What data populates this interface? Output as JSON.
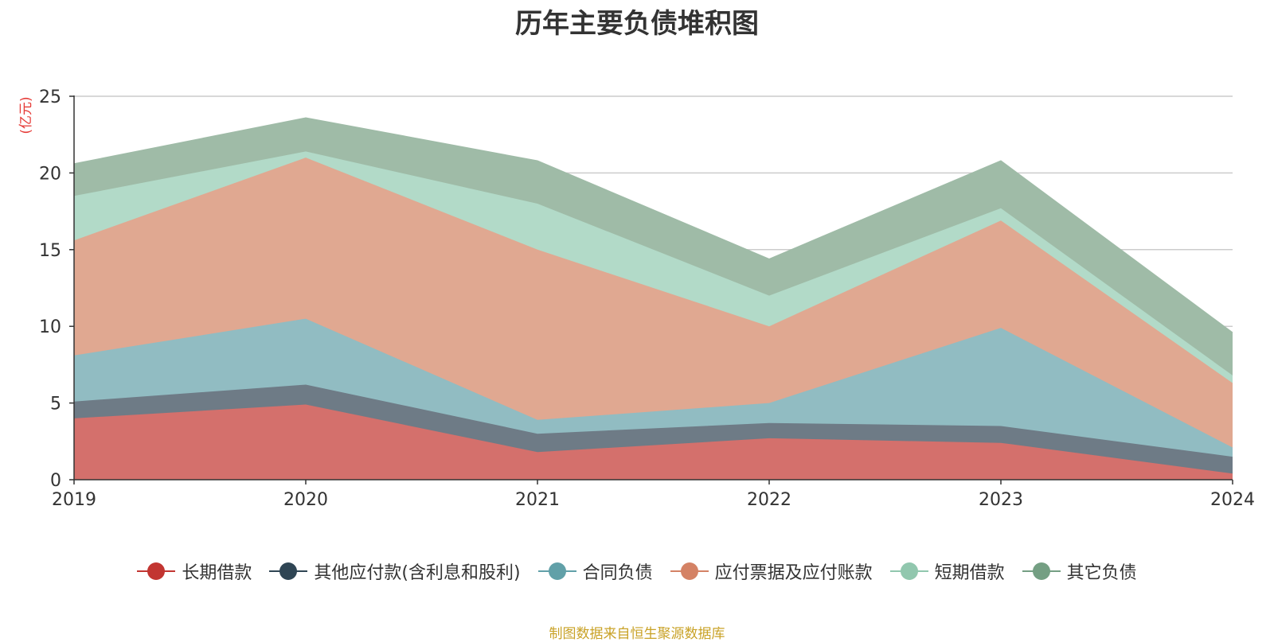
{
  "chart_data": {
    "type": "area",
    "stacked": true,
    "title": "历年主要负债堆积图",
    "ylabel": "(亿元)",
    "xlabel": "",
    "categories": [
      "2019",
      "2020",
      "2021",
      "2022",
      "2023",
      "2024"
    ],
    "ylim": [
      0,
      25
    ],
    "yticks": [
      0,
      5,
      10,
      15,
      20,
      25
    ],
    "grid": true,
    "legend_position": "bottom",
    "series": [
      {
        "name": "长期借款",
        "color": "#c23531",
        "fill": "#d4706c",
        "values": [
          4.0,
          4.9,
          1.8,
          2.7,
          2.4,
          0.4
        ]
      },
      {
        "name": "其他应付款(含利息和股利)",
        "color": "#2f4554",
        "fill": "#6e7b86",
        "values": [
          1.1,
          1.3,
          1.2,
          1.0,
          1.1,
          1.1
        ]
      },
      {
        "name": "合同负债",
        "color": "#61a0a8",
        "fill": "#91bcc2",
        "values": [
          3.0,
          4.3,
          0.9,
          1.3,
          6.4,
          0.6
        ]
      },
      {
        "name": "应付票据及应付账款",
        "color": "#d48265",
        "fill": "#e0a891",
        "values": [
          7.5,
          10.5,
          11.1,
          5.0,
          7.0,
          4.2
        ]
      },
      {
        "name": "短期借款",
        "color": "#91c7ae",
        "fill": "#b2dac8",
        "values": [
          2.9,
          0.4,
          3.0,
          2.0,
          0.8,
          0.5
        ]
      },
      {
        "name": "其它负债",
        "color": "#749f83",
        "fill": "#9fbba7",
        "values": [
          2.1,
          2.2,
          2.8,
          2.4,
          3.1,
          2.8
        ]
      }
    ]
  },
  "source_note": "制图数据来自恒生聚源数据库"
}
